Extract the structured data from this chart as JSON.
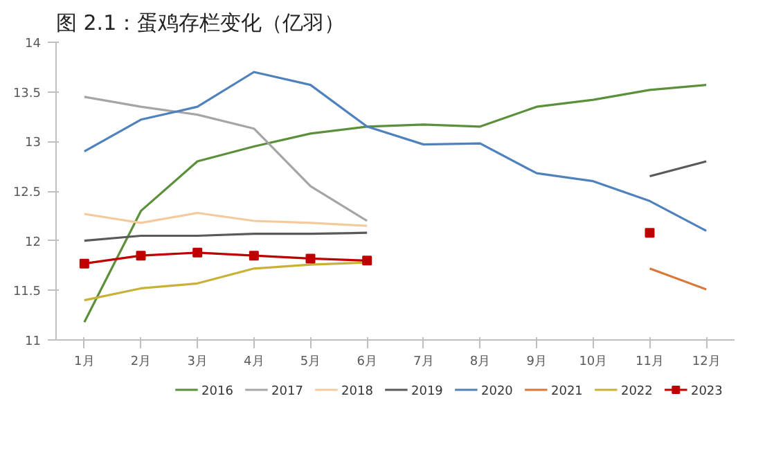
{
  "chart_data": {
    "type": "line",
    "title": "图 2.1：蛋鸡存栏变化（亿羽）",
    "categories": [
      "1月",
      "2月",
      "3月",
      "4月",
      "5月",
      "6月",
      "7月",
      "8月",
      "9月",
      "10月",
      "11月",
      "12月"
    ],
    "ylim": [
      11,
      14
    ],
    "yticks": [
      11,
      11.5,
      12,
      12.5,
      13,
      13.5,
      14
    ],
    "grid": false,
    "legend": "bottom",
    "series": [
      {
        "name": "2016",
        "color": "#5b8f3a",
        "values": [
          11.18,
          12.3,
          12.8,
          12.95,
          13.08,
          13.15,
          13.17,
          13.15,
          13.35,
          13.42,
          13.52,
          13.57
        ]
      },
      {
        "name": "2017",
        "color": "#a5a5a5",
        "values": [
          13.45,
          13.35,
          13.27,
          13.13,
          12.55,
          12.2,
          null,
          null,
          null,
          null,
          null,
          null
        ]
      },
      {
        "name": "2018",
        "color": "#f4c99b",
        "values": [
          12.27,
          12.18,
          12.28,
          12.2,
          12.18,
          12.15,
          null,
          null,
          null,
          null,
          null,
          null
        ]
      },
      {
        "name": "2019",
        "color": "#5a5a5a",
        "values": [
          12.0,
          12.05,
          12.05,
          12.07,
          12.07,
          12.08,
          null,
          null,
          null,
          null,
          12.65,
          12.8
        ]
      },
      {
        "name": "2020",
        "color": "#4f81bd",
        "values": [
          12.9,
          13.22,
          13.35,
          13.7,
          13.57,
          13.15,
          12.97,
          12.98,
          12.68,
          12.6,
          12.4,
          12.1
        ]
      },
      {
        "name": "2021",
        "color": "#d9773a",
        "values": [
          null,
          null,
          null,
          null,
          null,
          null,
          null,
          null,
          null,
          null,
          11.72,
          11.51
        ]
      },
      {
        "name": "2022",
        "color": "#c9b037",
        "values": [
          11.4,
          11.52,
          11.57,
          11.72,
          11.76,
          11.78,
          null,
          null,
          null,
          null,
          null,
          null
        ]
      },
      {
        "name": "2023",
        "color": "#c00000",
        "marker": "square",
        "values": [
          11.77,
          11.85,
          11.88,
          11.85,
          11.82,
          11.8,
          null,
          null,
          null,
          null,
          12.08,
          null
        ]
      }
    ]
  }
}
